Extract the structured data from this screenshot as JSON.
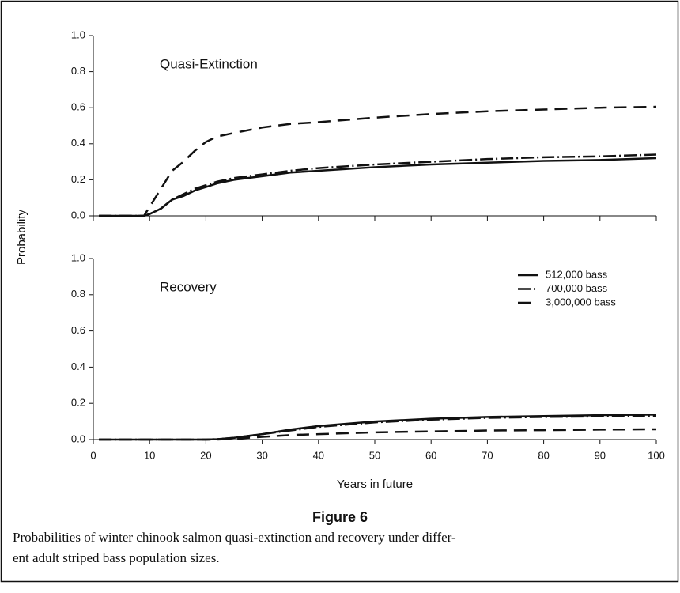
{
  "chart_data": [
    {
      "type": "line",
      "annotation": "Quasi-Extinction",
      "ylabel": "Probability",
      "x": [
        1,
        5,
        9,
        10,
        12,
        14,
        16,
        18,
        20,
        22,
        25,
        30,
        35,
        40,
        50,
        60,
        70,
        80,
        90,
        100
      ],
      "series": [
        {
          "color": "#111111",
          "dash": "solid",
          "values": [
            0,
            0,
            0,
            0.01,
            0.04,
            0.09,
            0.11,
            0.14,
            0.16,
            0.18,
            0.2,
            0.22,
            0.24,
            0.25,
            0.27,
            0.285,
            0.295,
            0.305,
            0.31,
            0.32
          ]
        },
        {
          "color": "#111111",
          "dash": "dashdot",
          "values": [
            0,
            0,
            0,
            0.01,
            0.04,
            0.09,
            0.12,
            0.15,
            0.17,
            0.19,
            0.21,
            0.23,
            0.25,
            0.265,
            0.285,
            0.3,
            0.315,
            0.325,
            0.33,
            0.34
          ]
        },
        {
          "color": "#111111",
          "dash": "dash",
          "values": [
            0,
            0,
            0,
            0.05,
            0.15,
            0.25,
            0.3,
            0.36,
            0.41,
            0.44,
            0.46,
            0.49,
            0.51,
            0.52,
            0.545,
            0.565,
            0.58,
            0.59,
            0.6,
            0.605
          ]
        }
      ],
      "xlim": [
        0,
        100
      ],
      "ylim": [
        0,
        1
      ],
      "yticks": [
        {
          "value": 0,
          "label": "0.0"
        },
        {
          "value": 0.2,
          "label": "0.2"
        },
        {
          "value": 0.4,
          "label": "0.4"
        },
        {
          "value": 0.6,
          "label": "0.6"
        },
        {
          "value": 0.8,
          "label": "0.8"
        },
        {
          "value": 1,
          "label": "1.0"
        }
      ]
    },
    {
      "type": "line",
      "annotation": "Recovery",
      "xlabel": "Years in future",
      "legend": "upper right",
      "x": [
        1,
        5,
        9,
        10,
        12,
        14,
        16,
        18,
        20,
        22,
        25,
        30,
        35,
        40,
        50,
        60,
        70,
        80,
        90,
        100
      ],
      "series": [
        {
          "name": "512,000 bass",
          "color": "#111111",
          "dash": "solid",
          "values": [
            0,
            0,
            0,
            0,
            0,
            0,
            0,
            0,
            0,
            0.002,
            0.01,
            0.03,
            0.055,
            0.075,
            0.1,
            0.115,
            0.125,
            0.13,
            0.135,
            0.138
          ]
        },
        {
          "name": "700,000 bass",
          "color": "#111111",
          "dash": "dashdot",
          "values": [
            0,
            0,
            0,
            0,
            0,
            0,
            0,
            0,
            0,
            0.002,
            0.01,
            0.03,
            0.05,
            0.07,
            0.095,
            0.11,
            0.12,
            0.125,
            0.128,
            0.13
          ]
        },
        {
          "name": "3,000,000 bass",
          "color": "#111111",
          "dash": "dash",
          "values": [
            0,
            0,
            0,
            0,
            0,
            0,
            0,
            0,
            0,
            0,
            0.005,
            0.015,
            0.025,
            0.03,
            0.04,
            0.045,
            0.05,
            0.052,
            0.055,
            0.057
          ]
        }
      ],
      "xlim": [
        0,
        100
      ],
      "xticks": [
        0,
        10,
        20,
        30,
        40,
        50,
        60,
        70,
        80,
        90,
        100
      ],
      "ylim": [
        0,
        1
      ],
      "yticks": [
        {
          "value": 0,
          "label": "0.0"
        },
        {
          "value": 0.2,
          "label": "0.2"
        },
        {
          "value": 0.4,
          "label": "0.4"
        },
        {
          "value": 0.6,
          "label": "0.6"
        },
        {
          "value": 0.8,
          "label": "0.8"
        },
        {
          "value": 1,
          "label": "1.0"
        }
      ]
    }
  ],
  "figure": {
    "label": "Figure 6",
    "caption": [
      "Probabilities of winter chinook salmon quasi-extinction and recovery under differ-",
      "ent adult striped bass population sizes."
    ]
  }
}
